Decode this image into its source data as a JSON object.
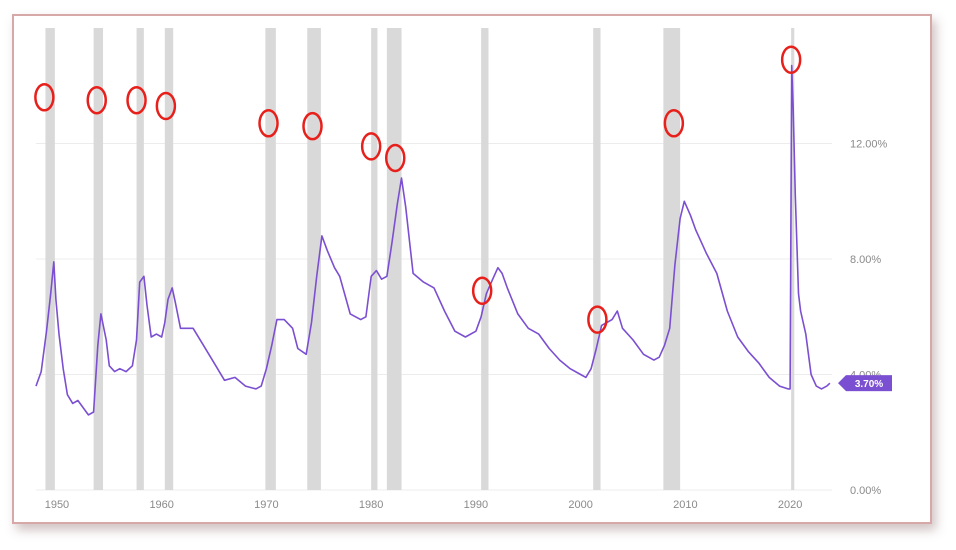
{
  "chart_data": {
    "type": "line",
    "title": "",
    "xlabel": "",
    "ylabel": "",
    "xlim": [
      1948,
      2024
    ],
    "ylim": [
      0,
      16
    ],
    "x_ticks": [
      1950,
      1960,
      1970,
      1980,
      1990,
      2000,
      2010,
      2020
    ],
    "y_ticks": [
      0,
      4,
      8,
      12
    ],
    "y_tick_labels": [
      "0.00%",
      "4.00%",
      "8.00%",
      "12.00%"
    ],
    "grid": true,
    "last_value_label": "3.70%",
    "colors": {
      "line": "#7b4fd1",
      "recession": "#d9d9d9",
      "marker": "#e8201b",
      "badge": "#7b4fd1"
    },
    "recessions": [
      [
        1948.9,
        1949.8
      ],
      [
        1953.5,
        1954.4
      ],
      [
        1957.6,
        1958.3
      ],
      [
        1960.3,
        1961.1
      ],
      [
        1969.9,
        1970.9
      ],
      [
        1973.9,
        1975.2
      ],
      [
        1980.0,
        1980.6
      ],
      [
        1981.5,
        1982.9
      ],
      [
        1990.5,
        1991.2
      ],
      [
        2001.2,
        2001.9
      ],
      [
        2007.9,
        2009.5
      ],
      [
        2020.1,
        2020.4
      ]
    ],
    "markers": [
      {
        "x": 1948.8,
        "y": 13.6
      },
      {
        "x": 1953.8,
        "y": 13.5
      },
      {
        "x": 1957.6,
        "y": 13.5
      },
      {
        "x": 1960.4,
        "y": 13.3
      },
      {
        "x": 1970.2,
        "y": 12.7
      },
      {
        "x": 1974.4,
        "y": 12.6
      },
      {
        "x": 1980.0,
        "y": 11.9
      },
      {
        "x": 1982.3,
        "y": 11.5
      },
      {
        "x": 1990.6,
        "y": 6.9
      },
      {
        "x": 2001.6,
        "y": 5.9
      },
      {
        "x": 2008.9,
        "y": 12.7
      },
      {
        "x": 2020.1,
        "y": 14.9
      }
    ],
    "series": [
      {
        "x": [
          1948.0,
          1948.5,
          1949.0,
          1949.4,
          1949.7,
          1949.9,
          1950.2,
          1950.6,
          1951.0,
          1951.5,
          1952.0,
          1952.6,
          1953.0,
          1953.5,
          1953.9,
          1954.2,
          1954.7,
          1955.0,
          1955.5,
          1956.0,
          1956.6,
          1957.2,
          1957.6,
          1957.9,
          1958.3,
          1958.6,
          1959.0,
          1959.5,
          1960.0,
          1960.3,
          1960.6,
          1961.0,
          1961.3,
          1961.8,
          1962.3,
          1963.0,
          1964.0,
          1965.0,
          1966.0,
          1967.0,
          1968.0,
          1969.0,
          1969.5,
          1970.0,
          1970.5,
          1971.0,
          1971.7,
          1972.5,
          1973.0,
          1973.8,
          1974.3,
          1974.8,
          1975.3,
          1975.8,
          1976.5,
          1977.0,
          1978.0,
          1979.0,
          1979.5,
          1980.0,
          1980.5,
          1981.0,
          1981.5,
          1982.0,
          1982.5,
          1982.9,
          1983.3,
          1984.0,
          1985.0,
          1986.0,
          1987.0,
          1988.0,
          1989.0,
          1990.0,
          1990.5,
          1991.0,
          1991.6,
          1992.1,
          1992.5,
          1993.0,
          1994.0,
          1995.0,
          1996.0,
          1997.0,
          1998.0,
          1999.0,
          2000.0,
          2000.5,
          2001.0,
          2001.5,
          2002.0,
          2002.5,
          2003.0,
          2003.5,
          2004.0,
          2005.0,
          2006.0,
          2007.0,
          2007.5,
          2008.0,
          2008.5,
          2009.0,
          2009.5,
          2009.9,
          2010.5,
          2011.0,
          2012.0,
          2013.0,
          2014.0,
          2015.0,
          2016.0,
          2017.0,
          2018.0,
          2019.0,
          2019.8,
          2020.0,
          2020.15,
          2020.3,
          2020.5,
          2020.8,
          2021.0,
          2021.5,
          2022.0,
          2022.5,
          2023.0,
          2023.5,
          2023.8
        ],
        "y": [
          3.6,
          4.1,
          5.5,
          6.8,
          7.9,
          6.6,
          5.4,
          4.2,
          3.3,
          3.0,
          3.1,
          2.8,
          2.6,
          2.7,
          5.0,
          6.1,
          5.2,
          4.3,
          4.1,
          4.2,
          4.1,
          4.3,
          5.2,
          7.2,
          7.4,
          6.4,
          5.3,
          5.4,
          5.3,
          5.8,
          6.6,
          7.0,
          6.5,
          5.6,
          5.6,
          5.6,
          5.0,
          4.4,
          3.8,
          3.9,
          3.6,
          3.5,
          3.6,
          4.2,
          5.0,
          5.9,
          5.9,
          5.6,
          4.9,
          4.7,
          5.8,
          7.4,
          8.8,
          8.3,
          7.7,
          7.4,
          6.1,
          5.9,
          6.0,
          7.4,
          7.6,
          7.3,
          7.4,
          8.6,
          9.9,
          10.8,
          9.8,
          7.5,
          7.2,
          7.0,
          6.2,
          5.5,
          5.3,
          5.5,
          6.0,
          6.8,
          7.3,
          7.7,
          7.5,
          7.0,
          6.1,
          5.6,
          5.4,
          4.9,
          4.5,
          4.2,
          4.0,
          3.9,
          4.2,
          4.9,
          5.7,
          5.8,
          5.9,
          6.2,
          5.6,
          5.2,
          4.7,
          4.5,
          4.6,
          5.0,
          5.6,
          7.8,
          9.4,
          10.0,
          9.5,
          9.0,
          8.2,
          7.5,
          6.2,
          5.3,
          4.8,
          4.4,
          3.9,
          3.6,
          3.5,
          3.5,
          14.7,
          13.2,
          10.2,
          6.8,
          6.2,
          5.4,
          4.0,
          3.6,
          3.5,
          3.6,
          3.7
        ]
      }
    ]
  }
}
